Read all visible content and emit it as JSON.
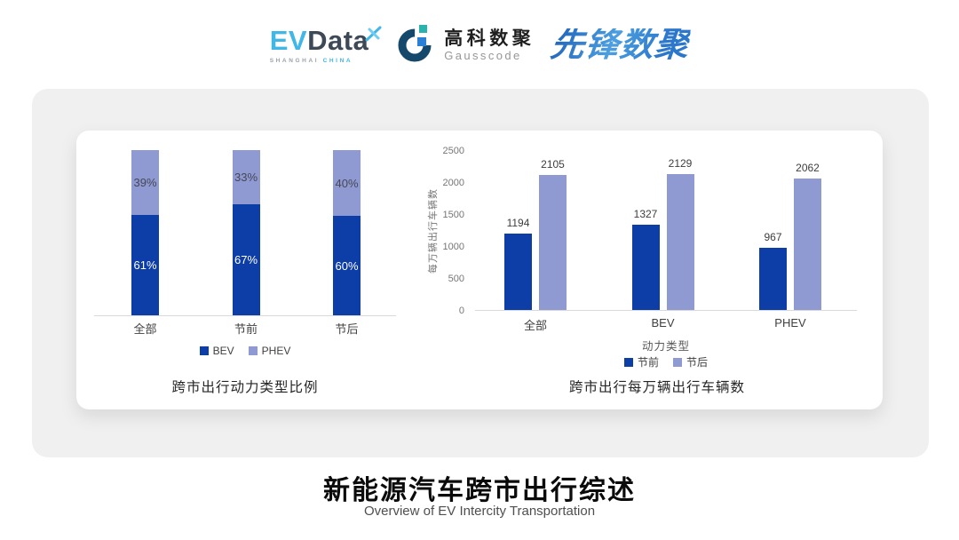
{
  "colors": {
    "series_dark": "#0d3da6",
    "series_light": "#8e9ad1",
    "axis_line": "#d9d9d9",
    "stacked_label_on_dark": "#ffffff",
    "stacked_label_on_light": "#474756",
    "evdata_cyan": "#41b7e8",
    "evdata_dark": "#3d4956",
    "gauss_ring": "#16486b",
    "gauss_teal": "#29b3ae",
    "gauss_blue": "#2b7fd4",
    "pioneer_blue": "#2b78c9"
  },
  "header": {
    "evdata": {
      "part1": "EV",
      "part2": "Data",
      "sub1": "SHANGHAI",
      "sub2": "CHINA"
    },
    "gausscode": {
      "cn": "高科数聚",
      "en": "Gausscode"
    },
    "pioneer": "先锋数聚"
  },
  "chart_data": [
    {
      "type": "bar",
      "variant": "stacked-percent",
      "title": "跨市出行动力类型比例",
      "categories": [
        "全部",
        "节前",
        "节后"
      ],
      "series": [
        {
          "name": "BEV",
          "color": "#0d3da6",
          "values": [
            61,
            67,
            60
          ]
        },
        {
          "name": "PHEV",
          "color": "#8e9ad1",
          "values": [
            39,
            33,
            40
          ]
        }
      ],
      "value_suffix": "%",
      "ylim": [
        0,
        100
      ],
      "legend_position": "bottom",
      "grid": false
    },
    {
      "type": "bar",
      "variant": "grouped",
      "title": "跨市出行每万辆出行车辆数",
      "categories": [
        "全部",
        "BEV",
        "PHEV"
      ],
      "series": [
        {
          "name": "节前",
          "color": "#0d3da6",
          "values": [
            1194,
            1327,
            967
          ]
        },
        {
          "name": "节后",
          "color": "#8e9ad1",
          "values": [
            2105,
            2129,
            2062
          ]
        }
      ],
      "xlabel": "动力类型",
      "ylabel": "每万辆出行车辆数",
      "ylim": [
        0,
        2500
      ],
      "yticks": [
        0,
        500,
        1000,
        1500,
        2000,
        2500
      ],
      "legend_position": "bottom",
      "grid": false
    }
  ],
  "footer": {
    "title": "新能源汽车跨市出行综述",
    "subtitle": "Overview of EV Intercity Transportation"
  }
}
